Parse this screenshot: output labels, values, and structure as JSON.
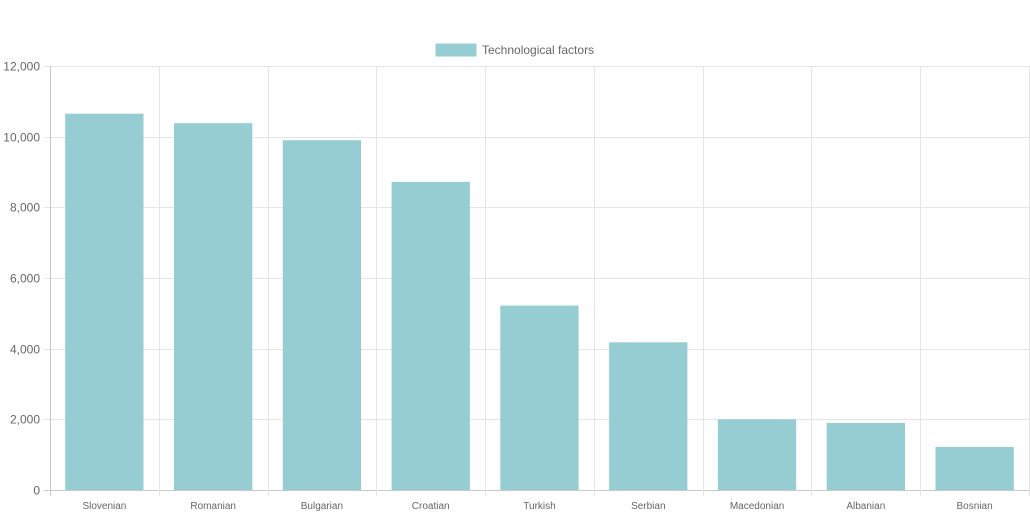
{
  "chart_data": {
    "type": "bar",
    "title": "",
    "xlabel": "",
    "ylabel": "",
    "legend": {
      "position": "top-center",
      "entries": [
        {
          "label": "Technological factors",
          "color": "#96cdd2"
        }
      ]
    },
    "categories": [
      "Slovenian",
      "Romanian",
      "Bulgarian",
      "Croatian",
      "Turkish",
      "Serbian",
      "Macedonian",
      "Albanian",
      "Bosnian"
    ],
    "series": [
      {
        "name": "Technological factors",
        "color": "#96cdd2",
        "values": [
          10650,
          10380,
          9900,
          8720,
          5220,
          4180,
          2000,
          1900,
          1220
        ]
      }
    ],
    "ylim": [
      0,
      12000
    ],
    "yticks": [
      0,
      2000,
      4000,
      6000,
      8000,
      10000,
      12000
    ],
    "ytick_labels": [
      "0",
      "2,000",
      "4,000",
      "6,000",
      "8,000",
      "10,000",
      "12,000"
    ],
    "grid": true
  }
}
